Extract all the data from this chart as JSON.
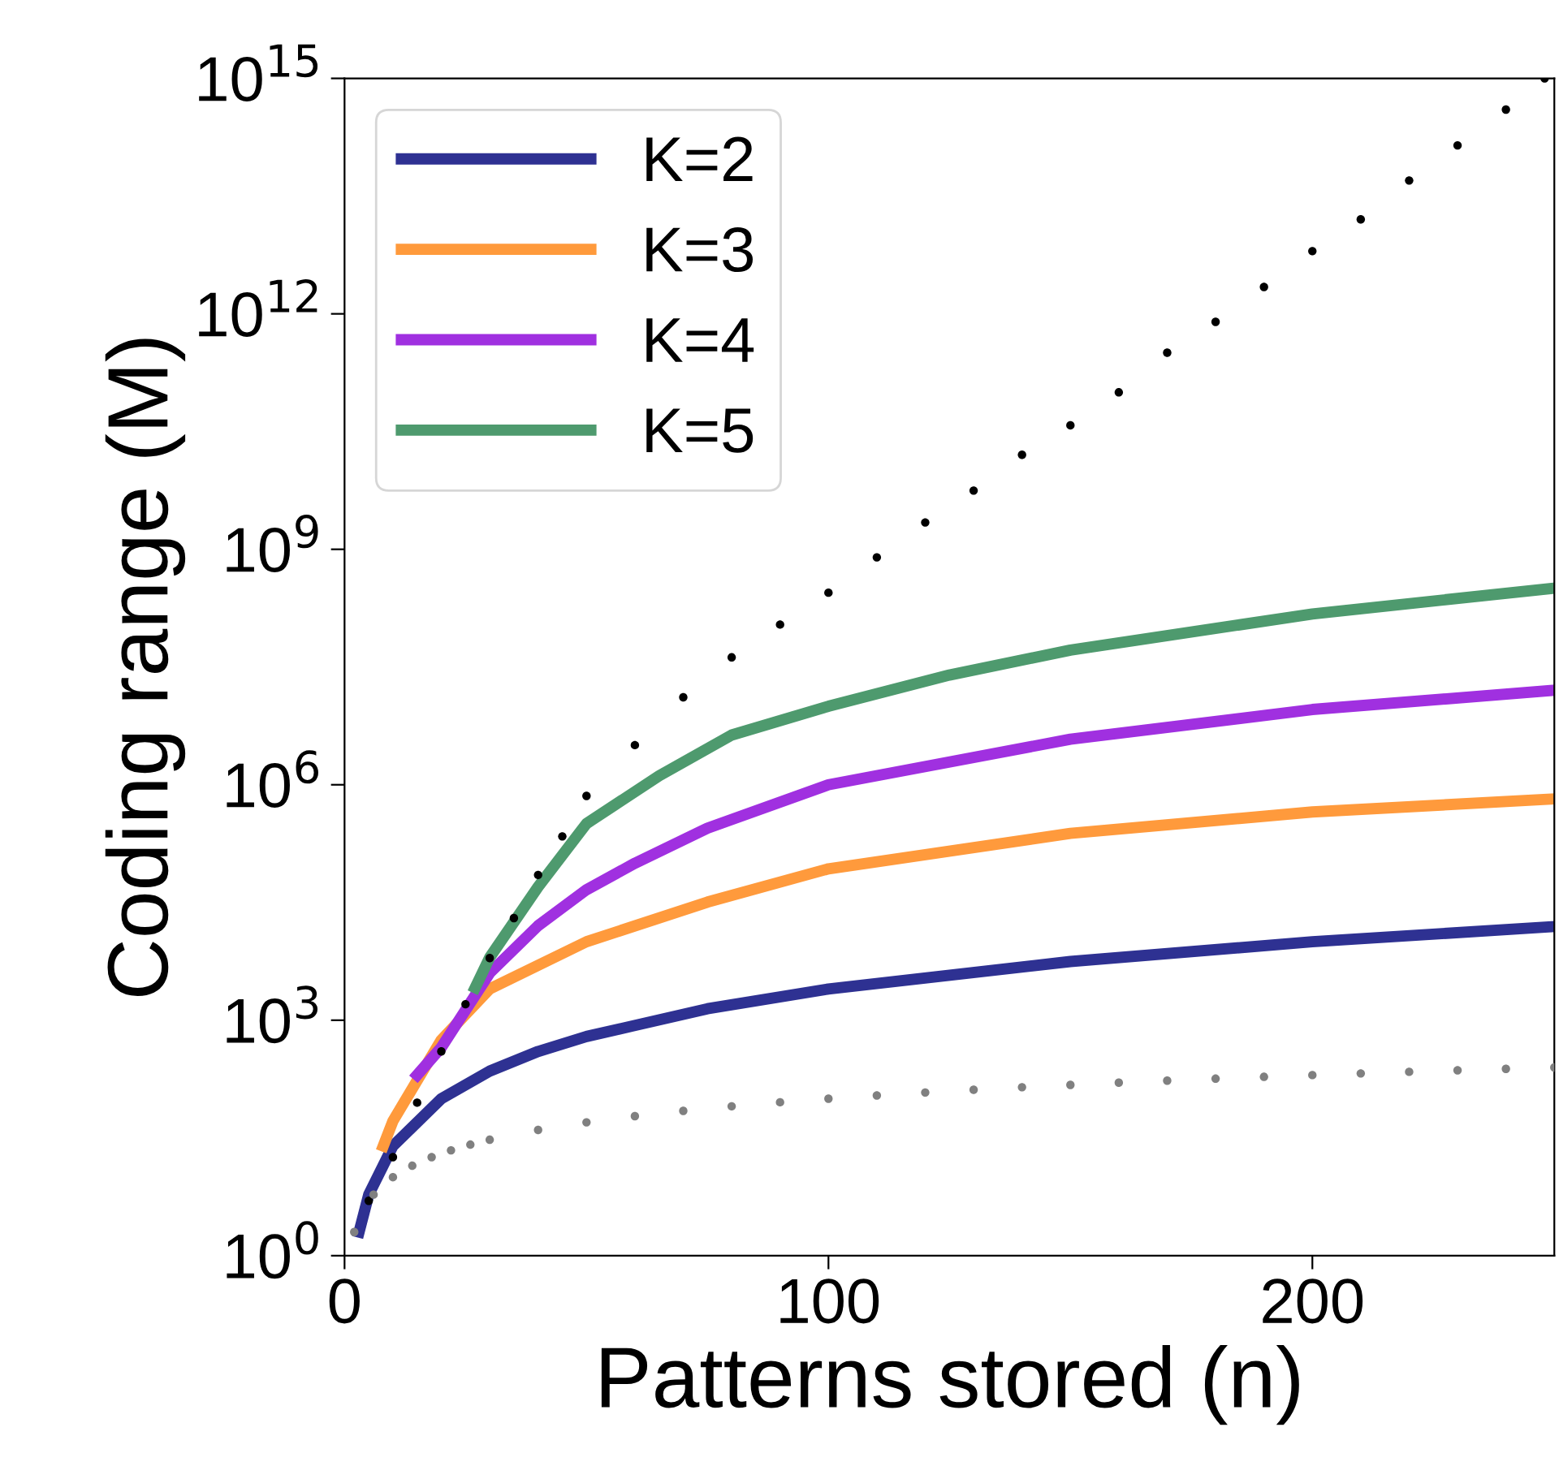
{
  "chart_data": {
    "type": "line",
    "xlabel": "Patterns stored (n)",
    "ylabel": "Coding range (M)",
    "log": "y",
    "grid": false,
    "legend": "top left",
    "xlim": [
      0,
      250
    ],
    "xticks": [
      0,
      100,
      200
    ],
    "ylim": [
      1,
      1000000000000000.0
    ],
    "yticks": [
      {
        "value": 1,
        "label": "10$^{0}$"
      },
      {
        "value": 1000,
        "label": "10$^{3}$"
      },
      {
        "value": 1000000,
        "label": "10$^{6}$"
      },
      {
        "value": 1000000000,
        "label": "10$^{9}$"
      },
      {
        "value": 1000000000000,
        "label": "10$^{12}$"
      },
      {
        "value": 1000000000000000,
        "label": "10$^{15}$"
      }
    ],
    "series": [
      {
        "type": "scatter",
        "marker": "circle",
        "color": "#000000",
        "x": [
          5,
          10,
          15,
          20,
          25,
          30,
          35,
          40,
          45,
          50,
          60,
          70,
          80,
          90,
          100,
          110,
          120,
          130,
          140,
          150,
          160,
          170,
          180,
          190,
          200,
          210,
          220,
          230,
          240,
          248
        ],
        "values": [
          5,
          18,
          89,
          400,
          1600,
          6200,
          20000,
          71000,
          220000,
          720000,
          3200000,
          13000000,
          42000000,
          110000000,
          280000000,
          790000000,
          2200000000,
          5600000000,
          16000000000,
          38000000000,
          100000000000,
          320000000000,
          790000000000,
          2200000000000,
          6300000000000,
          16000000000000,
          50000000000000,
          140000000000000,
          400000000000000,
          1000000000000000
        ]
      },
      {
        "type": "scatter",
        "marker": "circle",
        "color": "#808080",
        "x": [
          2,
          6,
          10,
          14,
          18,
          22,
          26,
          30,
          40,
          50,
          60,
          70,
          80,
          90,
          100,
          110,
          120,
          130,
          140,
          150,
          160,
          170,
          180,
          190,
          200,
          210,
          220,
          230,
          240,
          250
        ],
        "values": [
          2,
          6,
          10,
          14,
          18,
          22,
          26,
          30,
          40,
          50,
          60,
          70,
          80,
          90,
          100,
          110,
          120,
          130,
          140,
          150,
          160,
          170,
          180,
          190,
          200,
          210,
          220,
          230,
          240,
          250
        ]
      },
      {
        "name": "K=2",
        "color": "#2e3192",
        "marker": "none",
        "line_style": "solid",
        "x": [
          3,
          5,
          10,
          20,
          30,
          40,
          50,
          75,
          100,
          150,
          200,
          250
        ],
        "values": [
          2,
          6,
          25,
          100,
          225,
          400,
          620,
          1400,
          2500,
          5600,
          10000,
          15600
        ]
      },
      {
        "name": "K=3",
        "color": "#ff9a3c",
        "marker": "none",
        "line_style": "solid",
        "x": [
          8,
          10,
          20,
          30,
          50,
          75,
          100,
          150,
          200,
          250
        ],
        "values": [
          25,
          52,
          560,
          2500,
          10000,
          32000,
          85000,
          240000,
          450000,
          660000
        ]
      },
      {
        "name": "K=4",
        "color": "#a030e0",
        "marker": "none",
        "line_style": "solid",
        "x": [
          15,
          20,
          30,
          40,
          50,
          60,
          75,
          100,
          150,
          200,
          250
        ],
        "values": [
          200,
          450,
          4000,
          16000,
          46000,
          100000,
          280000,
          1000000,
          3800000,
          9100000,
          16000000
        ]
      },
      {
        "name": "K=5",
        "color": "#4e9a6e",
        "marker": "none",
        "line_style": "solid",
        "x": [
          27,
          30,
          40,
          50,
          65,
          80,
          100,
          125,
          150,
          200,
          250
        ],
        "values": [
          2600,
          6300,
          50000,
          320000,
          1300000,
          4300000,
          10000000,
          25000000,
          52000000,
          150000000,
          320000000
        ]
      }
    ]
  }
}
